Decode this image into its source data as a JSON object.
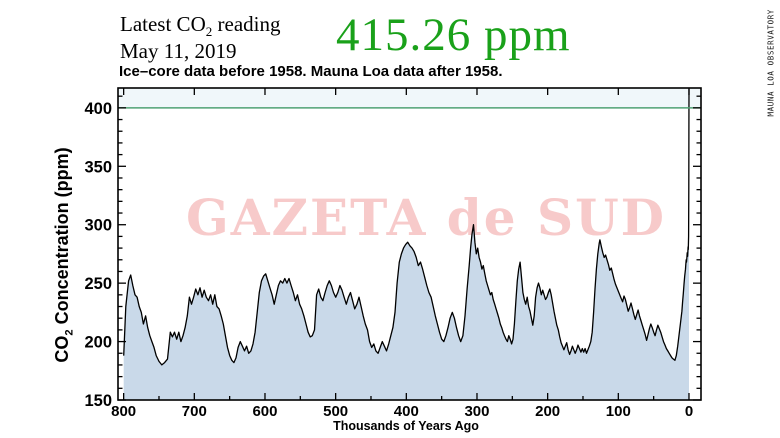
{
  "header": {
    "reading_label_pre": "Latest CO",
    "reading_label_sub": "2",
    "reading_label_post": " reading",
    "reading_date": "May 11, 2019",
    "big_reading": "415.26 ppm",
    "big_reading_color": "#1aa11a",
    "subtitle": "Ice–core data before 1958. Mauna Loa data after 1958."
  },
  "side_label": "MAUNA LOA OBSERVATORY",
  "watermark": {
    "text": "GAZETA de SUD",
    "color": "#f7caca"
  },
  "chart_data": {
    "type": "area",
    "title": "CO2 concentration over the last 800,000 years",
    "xlabel": "Thousands of Years Ago",
    "ylabel_pre": "CO",
    "ylabel_sub": "2",
    "ylabel_post": " Concentration (ppm)",
    "xlim": [
      808,
      -17
    ],
    "ylim": [
      150,
      417
    ],
    "x_ticks": [
      800,
      700,
      600,
      500,
      400,
      300,
      200,
      100,
      0
    ],
    "y_ticks": [
      150,
      200,
      250,
      300,
      350,
      400
    ],
    "x_minor_step": 50,
    "y_minor_step": 10,
    "grid": false,
    "legend": "none",
    "reference_line": {
      "value": 400,
      "color": "#4fa173"
    },
    "band_above_ref_fill": "#f0f7fa",
    "area_fill": "#c9d9e9",
    "line_color": "#000000",
    "points": [
      [
        800,
        188
      ],
      [
        797,
        230
      ],
      [
        793,
        252
      ],
      [
        790,
        257
      ],
      [
        787,
        248
      ],
      [
        784,
        240
      ],
      [
        781,
        238
      ],
      [
        778,
        230
      ],
      [
        775,
        225
      ],
      [
        772,
        215
      ],
      [
        769,
        222
      ],
      [
        766,
        212
      ],
      [
        763,
        205
      ],
      [
        760,
        200
      ],
      [
        757,
        195
      ],
      [
        754,
        188
      ],
      [
        750,
        183
      ],
      [
        746,
        180
      ],
      [
        742,
        182
      ],
      [
        738,
        185
      ],
      [
        734,
        208
      ],
      [
        731,
        204
      ],
      [
        728,
        208
      ],
      [
        725,
        202
      ],
      [
        722,
        208
      ],
      [
        719,
        200
      ],
      [
        716,
        205
      ],
      [
        713,
        212
      ],
      [
        710,
        222
      ],
      [
        707,
        238
      ],
      [
        704,
        232
      ],
      [
        701,
        238
      ],
      [
        698,
        245
      ],
      [
        695,
        240
      ],
      [
        692,
        246
      ],
      [
        689,
        238
      ],
      [
        686,
        244
      ],
      [
        683,
        238
      ],
      [
        680,
        235
      ],
      [
        677,
        240
      ],
      [
        674,
        232
      ],
      [
        671,
        240
      ],
      [
        668,
        230
      ],
      [
        665,
        228
      ],
      [
        662,
        222
      ],
      [
        659,
        215
      ],
      [
        656,
        205
      ],
      [
        653,
        195
      ],
      [
        650,
        188
      ],
      [
        647,
        184
      ],
      [
        644,
        182
      ],
      [
        641,
        186
      ],
      [
        638,
        195
      ],
      [
        635,
        200
      ],
      [
        632,
        196
      ],
      [
        629,
        192
      ],
      [
        626,
        196
      ],
      [
        623,
        190
      ],
      [
        620,
        192
      ],
      [
        617,
        198
      ],
      [
        614,
        208
      ],
      [
        611,
        225
      ],
      [
        608,
        242
      ],
      [
        605,
        252
      ],
      [
        602,
        256
      ],
      [
        599,
        258
      ],
      [
        596,
        252
      ],
      [
        593,
        246
      ],
      [
        590,
        240
      ],
      [
        587,
        232
      ],
      [
        584,
        240
      ],
      [
        581,
        248
      ],
      [
        578,
        252
      ],
      [
        575,
        250
      ],
      [
        572,
        254
      ],
      [
        569,
        250
      ],
      [
        566,
        254
      ],
      [
        563,
        248
      ],
      [
        560,
        242
      ],
      [
        557,
        235
      ],
      [
        554,
        240
      ],
      [
        551,
        232
      ],
      [
        548,
        228
      ],
      [
        545,
        222
      ],
      [
        542,
        215
      ],
      [
        539,
        208
      ],
      [
        536,
        204
      ],
      [
        533,
        205
      ],
      [
        530,
        210
      ],
      [
        527,
        240
      ],
      [
        524,
        245
      ],
      [
        521,
        238
      ],
      [
        518,
        235
      ],
      [
        515,
        242
      ],
      [
        512,
        248
      ],
      [
        509,
        252
      ],
      [
        506,
        248
      ],
      [
        503,
        242
      ],
      [
        500,
        238
      ],
      [
        497,
        242
      ],
      [
        494,
        248
      ],
      [
        491,
        244
      ],
      [
        488,
        238
      ],
      [
        485,
        232
      ],
      [
        482,
        238
      ],
      [
        479,
        242
      ],
      [
        476,
        235
      ],
      [
        473,
        228
      ],
      [
        470,
        232
      ],
      [
        467,
        238
      ],
      [
        464,
        230
      ],
      [
        461,
        222
      ],
      [
        458,
        215
      ],
      [
        455,
        210
      ],
      [
        452,
        200
      ],
      [
        449,
        195
      ],
      [
        446,
        198
      ],
      [
        443,
        192
      ],
      [
        440,
        190
      ],
      [
        437,
        195
      ],
      [
        434,
        200
      ],
      [
        431,
        196
      ],
      [
        428,
        192
      ],
      [
        425,
        198
      ],
      [
        422,
        205
      ],
      [
        419,
        212
      ],
      [
        416,
        225
      ],
      [
        413,
        250
      ],
      [
        410,
        268
      ],
      [
        407,
        275
      ],
      [
        404,
        280
      ],
      [
        401,
        283
      ],
      [
        398,
        285
      ],
      [
        395,
        282
      ],
      [
        392,
        280
      ],
      [
        389,
        277
      ],
      [
        386,
        272
      ],
      [
        383,
        265
      ],
      [
        380,
        268
      ],
      [
        377,
        262
      ],
      [
        374,
        255
      ],
      [
        371,
        248
      ],
      [
        368,
        242
      ],
      [
        365,
        238
      ],
      [
        362,
        230
      ],
      [
        359,
        222
      ],
      [
        356,
        215
      ],
      [
        353,
        208
      ],
      [
        350,
        202
      ],
      [
        347,
        200
      ],
      [
        344,
        205
      ],
      [
        341,
        212
      ],
      [
        338,
        220
      ],
      [
        335,
        225
      ],
      [
        332,
        220
      ],
      [
        329,
        212
      ],
      [
        326,
        205
      ],
      [
        323,
        200
      ],
      [
        320,
        205
      ],
      [
        317,
        222
      ],
      [
        314,
        245
      ],
      [
        311,
        265
      ],
      [
        309,
        280
      ],
      [
        307,
        292
      ],
      [
        305,
        300
      ],
      [
        303,
        285
      ],
      [
        301,
        275
      ],
      [
        299,
        280
      ],
      [
        297,
        272
      ],
      [
        295,
        268
      ],
      [
        293,
        262
      ],
      [
        291,
        265
      ],
      [
        289,
        258
      ],
      [
        287,
        252
      ],
      [
        285,
        248
      ],
      [
        283,
        244
      ],
      [
        281,
        240
      ],
      [
        279,
        242
      ],
      [
        277,
        236
      ],
      [
        275,
        232
      ],
      [
        273,
        228
      ],
      [
        271,
        224
      ],
      [
        269,
        220
      ],
      [
        267,
        215
      ],
      [
        265,
        212
      ],
      [
        263,
        208
      ],
      [
        261,
        205
      ],
      [
        259,
        202
      ],
      [
        257,
        200
      ],
      [
        255,
        205
      ],
      [
        253,
        202
      ],
      [
        251,
        198
      ],
      [
        249,
        202
      ],
      [
        247,
        215
      ],
      [
        245,
        235
      ],
      [
        243,
        252
      ],
      [
        241,
        262
      ],
      [
        239,
        268
      ],
      [
        237,
        255
      ],
      [
        235,
        242
      ],
      [
        233,
        236
      ],
      [
        231,
        232
      ],
      [
        229,
        238
      ],
      [
        227,
        230
      ],
      [
        225,
        226
      ],
      [
        223,
        220
      ],
      [
        221,
        214
      ],
      [
        219,
        222
      ],
      [
        217,
        238
      ],
      [
        215,
        246
      ],
      [
        213,
        250
      ],
      [
        211,
        246
      ],
      [
        209,
        240
      ],
      [
        207,
        244
      ],
      [
        205,
        240
      ],
      [
        203,
        236
      ],
      [
        201,
        238
      ],
      [
        199,
        242
      ],
      [
        197,
        245
      ],
      [
        195,
        240
      ],
      [
        193,
        233
      ],
      [
        191,
        226
      ],
      [
        189,
        220
      ],
      [
        187,
        214
      ],
      [
        185,
        210
      ],
      [
        183,
        204
      ],
      [
        181,
        199
      ],
      [
        179,
        196
      ],
      [
        177,
        193
      ],
      [
        175,
        196
      ],
      [
        173,
        199
      ],
      [
        171,
        193
      ],
      [
        169,
        189
      ],
      [
        167,
        192
      ],
      [
        165,
        196
      ],
      [
        163,
        193
      ],
      [
        161,
        190
      ],
      [
        159,
        193
      ],
      [
        157,
        197
      ],
      [
        155,
        194
      ],
      [
        153,
        191
      ],
      [
        151,
        194
      ],
      [
        149,
        191
      ],
      [
        147,
        194
      ],
      [
        145,
        190
      ],
      [
        143,
        193
      ],
      [
        141,
        196
      ],
      [
        139,
        200
      ],
      [
        137,
        208
      ],
      [
        135,
        225
      ],
      [
        133,
        245
      ],
      [
        131,
        262
      ],
      [
        129,
        275
      ],
      [
        127,
        284
      ],
      [
        126,
        287
      ],
      [
        124,
        281
      ],
      [
        122,
        276
      ],
      [
        120,
        272
      ],
      [
        118,
        274
      ],
      [
        116,
        270
      ],
      [
        114,
        266
      ],
      [
        112,
        261
      ],
      [
        110,
        263
      ],
      [
        108,
        258
      ],
      [
        106,
        253
      ],
      [
        104,
        249
      ],
      [
        102,
        246
      ],
      [
        100,
        243
      ],
      [
        98,
        240
      ],
      [
        96,
        237
      ],
      [
        94,
        234
      ],
      [
        92,
        239
      ],
      [
        90,
        236
      ],
      [
        88,
        231
      ],
      [
        86,
        226
      ],
      [
        84,
        229
      ],
      [
        82,
        233
      ],
      [
        80,
        228
      ],
      [
        78,
        223
      ],
      [
        76,
        219
      ],
      [
        74,
        223
      ],
      [
        72,
        227
      ],
      [
        70,
        222
      ],
      [
        68,
        218
      ],
      [
        66,
        214
      ],
      [
        64,
        210
      ],
      [
        62,
        206
      ],
      [
        60,
        201
      ],
      [
        58,
        206
      ],
      [
        56,
        211
      ],
      [
        54,
        215
      ],
      [
        52,
        212
      ],
      [
        50,
        208
      ],
      [
        48,
        205
      ],
      [
        46,
        210
      ],
      [
        44,
        214
      ],
      [
        42,
        211
      ],
      [
        40,
        208
      ],
      [
        38,
        204
      ],
      [
        36,
        200
      ],
      [
        34,
        197
      ],
      [
        32,
        194
      ],
      [
        30,
        192
      ],
      [
        28,
        190
      ],
      [
        26,
        188
      ],
      [
        24,
        186
      ],
      [
        22,
        185
      ],
      [
        20,
        184
      ],
      [
        18,
        188
      ],
      [
        16,
        196
      ],
      [
        14,
        206
      ],
      [
        12,
        216
      ],
      [
        10,
        226
      ],
      [
        9,
        234
      ],
      [
        8,
        241
      ],
      [
        7,
        249
      ],
      [
        6,
        256
      ],
      [
        5,
        262
      ],
      [
        4.5,
        266
      ],
      [
        4,
        270
      ],
      [
        3.5,
        268
      ],
      [
        3,
        272
      ],
      [
        2.5,
        276
      ],
      [
        2,
        273
      ],
      [
        1.5,
        278
      ],
      [
        1.2,
        281
      ],
      [
        1,
        279
      ],
      [
        0.8,
        283
      ],
      [
        0.5,
        290
      ],
      [
        0.3,
        330
      ],
      [
        0.15,
        380
      ],
      [
        0,
        416
      ]
    ]
  }
}
